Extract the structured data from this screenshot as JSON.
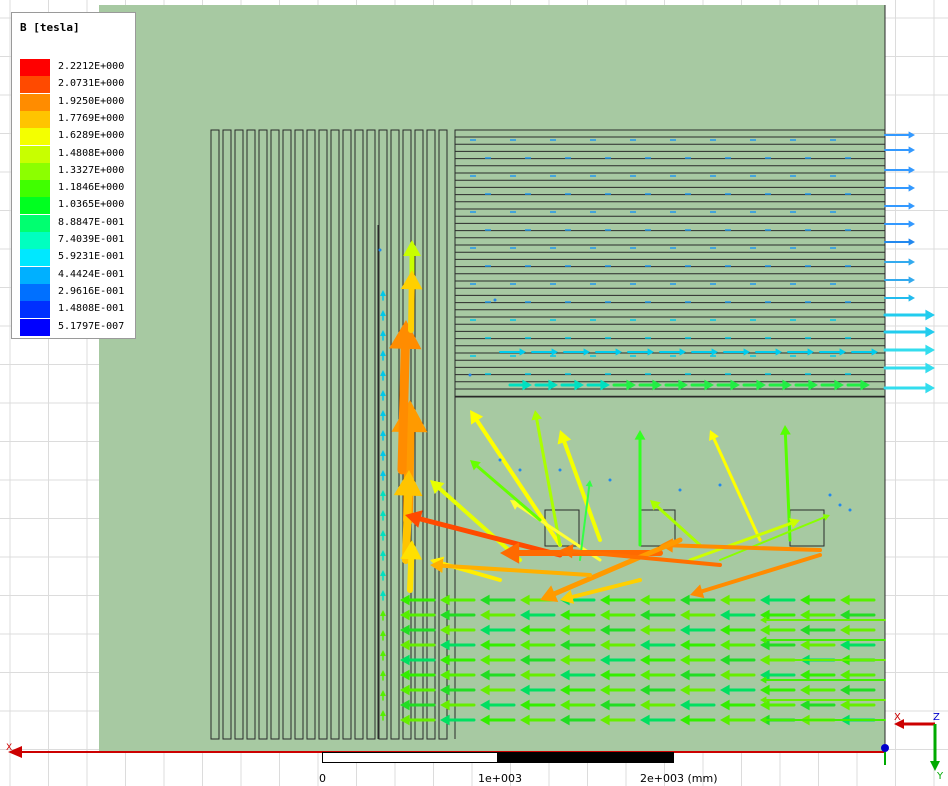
{
  "legend": {
    "title": "B [tesla]",
    "entries": [
      {
        "label": "2.2212E+000",
        "color": "#ff0000"
      },
      {
        "label": "2.0731E+000",
        "color": "#ff4a00"
      },
      {
        "label": "1.9250E+000",
        "color": "#ff8c00"
      },
      {
        "label": "1.7769E+000",
        "color": "#ffc400"
      },
      {
        "label": "1.6289E+000",
        "color": "#f4ff00"
      },
      {
        "label": "1.4808E+000",
        "color": "#c8ff00"
      },
      {
        "label": "1.3327E+000",
        "color": "#8cff00"
      },
      {
        "label": "1.1846E+000",
        "color": "#40ff00"
      },
      {
        "label": "1.0365E+000",
        "color": "#00ff20"
      },
      {
        "label": "8.8847E-001",
        "color": "#00ff70"
      },
      {
        "label": "7.4039E-001",
        "color": "#00ffc0"
      },
      {
        "label": "5.9231E-001",
        "color": "#00e8ff"
      },
      {
        "label": "4.4424E-001",
        "color": "#00b0ff"
      },
      {
        "label": "2.9616E-001",
        "color": "#0070ff"
      },
      {
        "label": "1.4808E-001",
        "color": "#0030ff"
      },
      {
        "label": "5.1797E-007",
        "color": "#0000ff"
      }
    ]
  },
  "scale_bar": {
    "tick_0": "0",
    "tick_1": "1e+003",
    "tick_2": "2e+003 (mm)"
  },
  "axes_triad": {
    "x": "X",
    "y": "Y",
    "z": "Z"
  },
  "axis_label_left": "X",
  "colors": {
    "background": "#ffffff",
    "grid": "#dcdcdc",
    "model_fill": "#a7c9a2",
    "model_edge": "#2a2a2a",
    "x_axis": "#cc0000",
    "y_axis": "#00aa00",
    "z_axis": "#0000cc"
  }
}
